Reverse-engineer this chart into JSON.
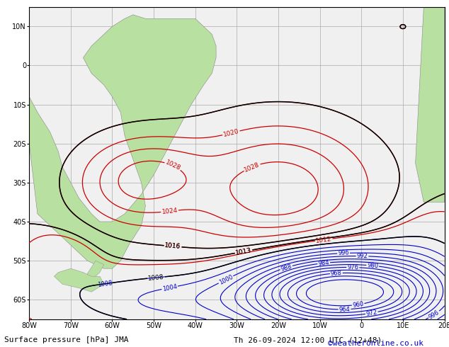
{
  "title_left": "Surface pressure [hPa] JMA",
  "title_right": "Th 26-09-2024 12:00 UTC (12+48)",
  "copyright": "©weatheronline.co.uk",
  "background_color": "#ffffff",
  "land_color": "#b8e0a0",
  "ocean_color": "#f0f0f0",
  "grid_color": "#aaaaaa",
  "contour_red_color": "#cc0000",
  "contour_black_color": "#000000",
  "contour_blue_color": "#0000cc",
  "lon_min": -80,
  "lon_max": 20,
  "lat_min": -65,
  "lat_max": 15,
  "xlabel_fontsize": 7,
  "ylabel_fontsize": 7,
  "title_fontsize": 8,
  "copyright_fontsize": 8,
  "copyright_color": "#0000cc"
}
